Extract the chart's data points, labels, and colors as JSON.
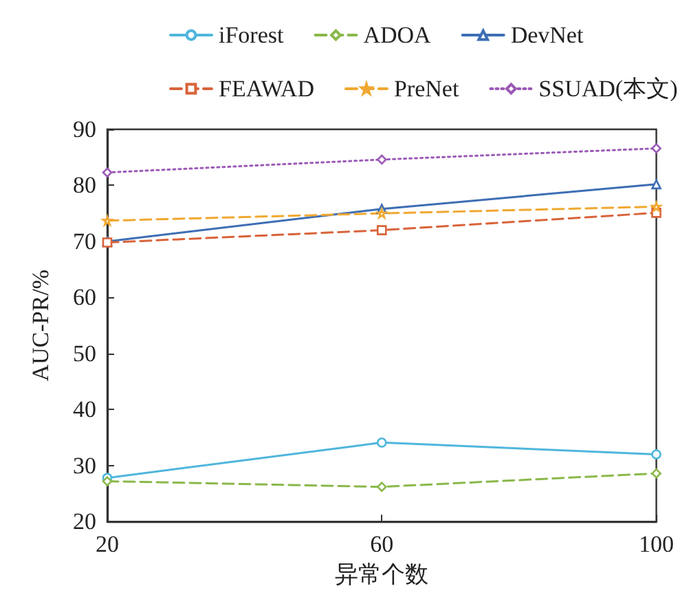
{
  "chart_data": {
    "type": "line",
    "xlabel": "异常个数",
    "ylabel": "AUC-PR/%",
    "x": [
      20,
      60,
      100
    ],
    "xlim": [
      20,
      100
    ],
    "xticks": [
      20,
      60,
      100
    ],
    "ylim": [
      20,
      90
    ],
    "yticks": [
      20,
      30,
      40,
      50,
      60,
      70,
      80,
      90
    ],
    "grid": false,
    "legend": "top",
    "series": [
      {
        "name": "iForest",
        "color": "#4fb6dc",
        "marker": "circle",
        "line_style": "solid",
        "values": [
          27.8,
          34.1,
          32.0
        ]
      },
      {
        "name": "ADOA",
        "color": "#8ab84a",
        "marker": "diamond",
        "line_style": "dashed",
        "values": [
          27.2,
          26.2,
          28.6
        ]
      },
      {
        "name": "DevNet",
        "color": "#3d6eb4",
        "marker": "triangle",
        "line_style": "solid",
        "values": [
          70.0,
          75.8,
          80.2
        ]
      },
      {
        "name": "FEAWAD",
        "color": "#d9633a",
        "marker": "square",
        "line_style": "dashed",
        "values": [
          69.8,
          72.0,
          75.1
        ]
      },
      {
        "name": "PreNet",
        "color": "#f0a830",
        "marker": "star",
        "line_style": "dashed",
        "values": [
          73.7,
          75.0,
          76.2
        ]
      },
      {
        "name": "SSUAD(本文)",
        "color": "#9b59b6",
        "marker": "diamond",
        "line_style": "dotted",
        "values": [
          82.3,
          84.6,
          86.6
        ]
      }
    ]
  }
}
